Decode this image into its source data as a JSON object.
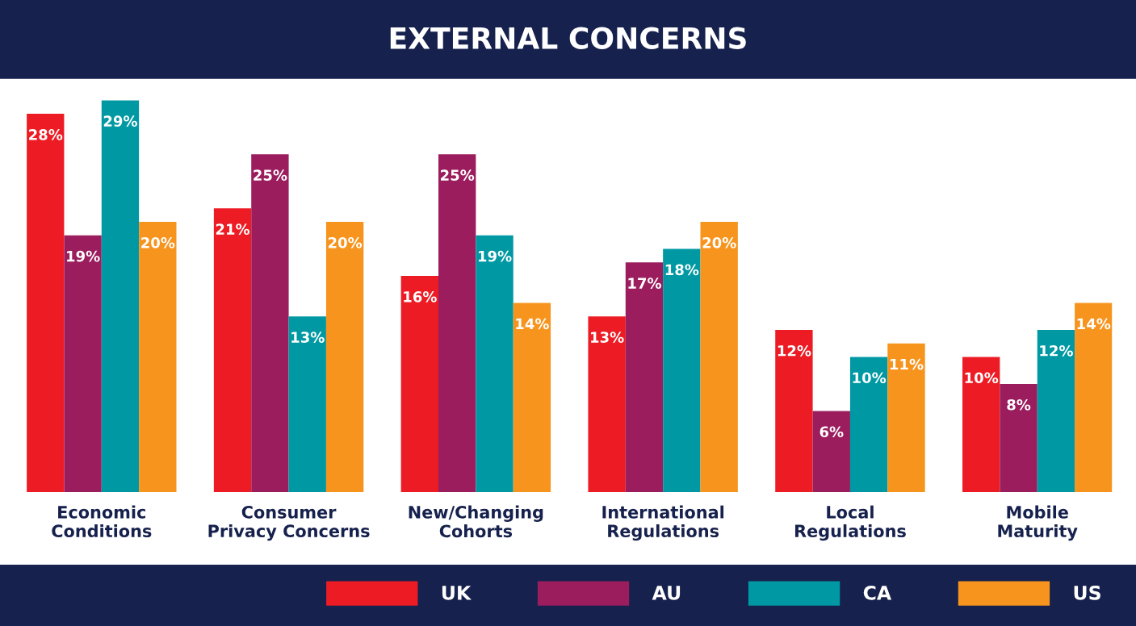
{
  "chart_data": {
    "type": "bar",
    "title": "EXTERNAL CONCERNS",
    "categories": [
      "Economic\nConditions",
      "Consumer\nPrivacy Concerns",
      "New/Changing\nCohorts",
      "International\nRegulations",
      "Local\nRegulations",
      "Mobile\nMaturity"
    ],
    "series": [
      {
        "name": "UK",
        "color": "#ed1c24",
        "values": [
          28,
          21,
          16,
          13,
          12,
          10
        ],
        "value_labels": [
          "28%",
          "21%",
          "16%",
          "13%",
          "12%",
          "10%"
        ]
      },
      {
        "name": "AU",
        "color": "#9b1d5e",
        "values": [
          19,
          25,
          25,
          17,
          6,
          8
        ],
        "value_labels": [
          "19%",
          "25%",
          "25%",
          "17%",
          "6%",
          "8%"
        ]
      },
      {
        "name": "CA",
        "color": "#0099a3",
        "values": [
          29,
          13,
          19,
          18,
          10,
          12
        ],
        "value_labels": [
          "29%",
          "13%",
          "19%",
          "18%",
          "10%",
          "12%"
        ]
      },
      {
        "name": "US",
        "color": "#f7941d",
        "values": [
          20,
          20,
          14,
          20,
          11,
          14
        ],
        "value_labels": [
          "20%",
          "20%",
          "14%",
          "20%",
          "11%",
          "14%"
        ]
      }
    ],
    "legend": "bottom right",
    "grid": false,
    "tick_labels": "x"
  }
}
